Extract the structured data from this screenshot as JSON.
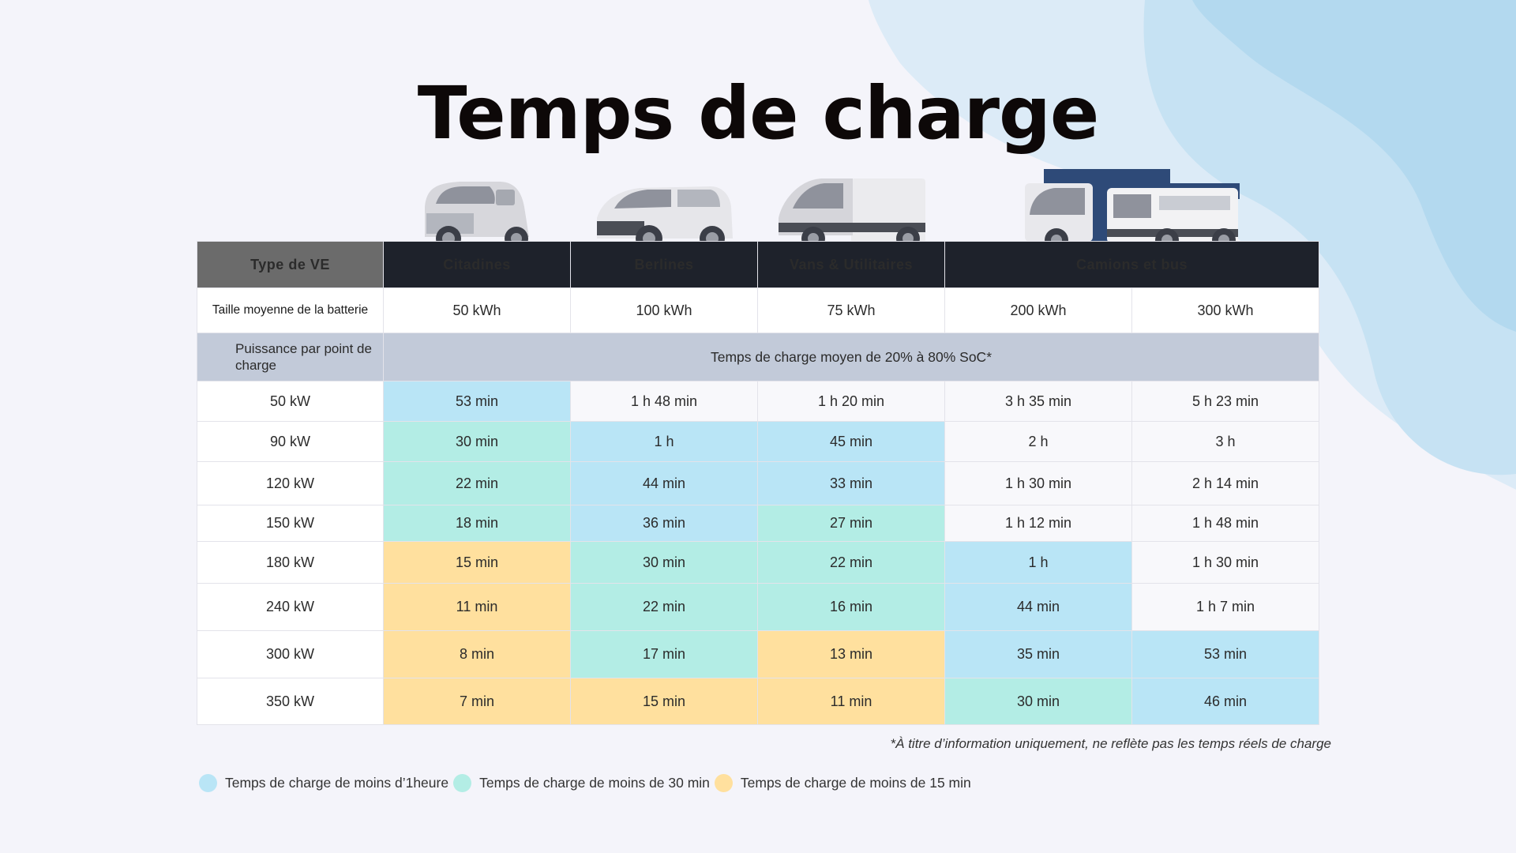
{
  "title": "Temps de charge",
  "colors": {
    "blue": "#b9e5f6",
    "green": "#b3ede5",
    "yellow": "#ffe09e",
    "white": "#f8f8fb"
  },
  "header": {
    "type_label": "Type de VE",
    "columns": [
      "Citadines",
      "Berlines",
      "Vans & Utilitaires",
      "Camions et bus"
    ]
  },
  "battery": {
    "label": "Taille moyenne de la batterie",
    "values": [
      "50 kWh",
      "100 kWh",
      "75 kWh",
      "200 kWh",
      "300 kWh"
    ]
  },
  "power_row": {
    "label": "Puissance par point de charge",
    "span_text": "Temps de charge moyen de 20% à 80% SoC*"
  },
  "rows": [
    {
      "power": "50 kW",
      "cells": [
        {
          "t": "53 min",
          "c": "b"
        },
        {
          "t": "1 h 48 min",
          "c": "w"
        },
        {
          "t": "1 h 20 min",
          "c": "w"
        },
        {
          "t": "3 h 35 min",
          "c": "w"
        },
        {
          "t": "5 h 23 min",
          "c": "w"
        }
      ]
    },
    {
      "power": "90 kW",
      "cells": [
        {
          "t": "30 min",
          "c": "g"
        },
        {
          "t": "1 h",
          "c": "b"
        },
        {
          "t": "45 min",
          "c": "b"
        },
        {
          "t": "2 h",
          "c": "w"
        },
        {
          "t": "3 h",
          "c": "w"
        }
      ]
    },
    {
      "power": "120 kW",
      "cells": [
        {
          "t": "22 min",
          "c": "g"
        },
        {
          "t": "44 min",
          "c": "b"
        },
        {
          "t": "33 min",
          "c": "b"
        },
        {
          "t": "1 h 30 min",
          "c": "w"
        },
        {
          "t": "2 h 14 min",
          "c": "w"
        }
      ]
    },
    {
      "power": "150 kW",
      "cells": [
        {
          "t": "18 min",
          "c": "g"
        },
        {
          "t": "36 min",
          "c": "b"
        },
        {
          "t": "27 min",
          "c": "g"
        },
        {
          "t": "1 h 12 min",
          "c": "w"
        },
        {
          "t": "1 h 48 min",
          "c": "w"
        }
      ]
    },
    {
      "power": "180 kW",
      "cells": [
        {
          "t": "15 min",
          "c": "y"
        },
        {
          "t": "30 min",
          "c": "g"
        },
        {
          "t": "22 min",
          "c": "g"
        },
        {
          "t": "1 h",
          "c": "b"
        },
        {
          "t": "1 h 30 min",
          "c": "w"
        }
      ]
    },
    {
      "power": "240 kW",
      "cells": [
        {
          "t": "11 min",
          "c": "y"
        },
        {
          "t": "22 min",
          "c": "g"
        },
        {
          "t": "16 min",
          "c": "g"
        },
        {
          "t": "44 min",
          "c": "b"
        },
        {
          "t": "1 h 7 min",
          "c": "w"
        }
      ]
    },
    {
      "power": "300 kW",
      "cells": [
        {
          "t": "8 min",
          "c": "y"
        },
        {
          "t": "17 min",
          "c": "g"
        },
        {
          "t": "13 min",
          "c": "y"
        },
        {
          "t": "35 min",
          "c": "b"
        },
        {
          "t": "53 min",
          "c": "b"
        }
      ]
    },
    {
      "power": "350 kW",
      "cells": [
        {
          "t": "7 min",
          "c": "y"
        },
        {
          "t": "15 min",
          "c": "y"
        },
        {
          "t": "11 min",
          "c": "y"
        },
        {
          "t": "30 min",
          "c": "g"
        },
        {
          "t": "46 min",
          "c": "b"
        }
      ]
    }
  ],
  "footnote": "*À titre d’information uniquement, ne reflète pas les temps réels de charge",
  "legend": [
    {
      "label": "Temps de charge de moins d’1heure",
      "color": "#b9e5f6"
    },
    {
      "label": "Temps de charge de moins de 30 min",
      "color": "#b3ede5"
    },
    {
      "label": "Temps de charge de moins de 15 min",
      "color": "#ffe09e"
    }
  ],
  "icons": [
    "city-car-icon",
    "sedan-icon",
    "van-icon",
    "truck-icon",
    "bus-icon"
  ]
}
